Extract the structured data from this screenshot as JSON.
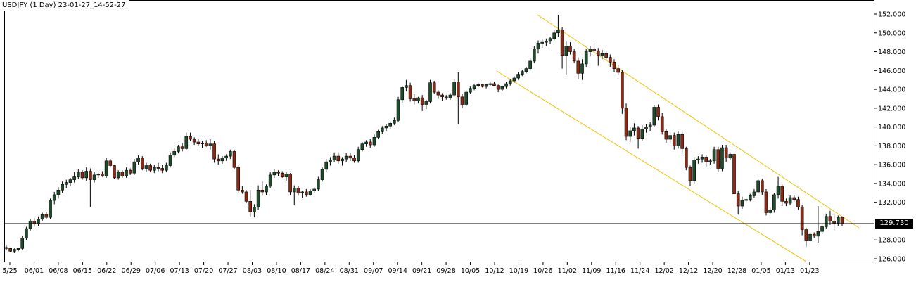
{
  "chart_data": {
    "type": "candlestick",
    "title": "USDJPY (1 Day) 23-01-27_14-52-27",
    "ylim": [
      126,
      152
    ],
    "yticks": [
      "152.000",
      "150.000",
      "148.000",
      "146.000",
      "144.000",
      "142.000",
      "140.000",
      "138.000",
      "136.000",
      "134.000",
      "132.000",
      "130.000",
      "128.000",
      "126.000"
    ],
    "xticks": [
      "5/25",
      "06/01",
      "06/08",
      "06/15",
      "06/22",
      "06/29",
      "07/06",
      "07/13",
      "07/20",
      "07/27",
      "08/03",
      "08/10",
      "08/17",
      "08/24",
      "08/31",
      "09/07",
      "09/14",
      "09/21",
      "09/28",
      "10/05",
      "10/12",
      "10/19",
      "10/26",
      "11/02",
      "11/09",
      "11/16",
      "11/24",
      "12/02",
      "12/12",
      "12/20",
      "12/28",
      "01/05",
      "01/13",
      "01/23"
    ],
    "current_price": "129.730",
    "up_color": "#1f4d2c",
    "down_color": "#8b2a14",
    "channel_color": "#f2c200",
    "candles": [
      [
        127.2,
        127.4,
        126.9,
        127.1
      ],
      [
        127.1,
        127.2,
        126.7,
        126.8
      ],
      [
        126.8,
        127.1,
        126.6,
        127.0
      ],
      [
        127.0,
        127.2,
        126.8,
        127.1
      ],
      [
        127.1,
        128.4,
        126.9,
        128.2
      ],
      [
        128.2,
        129.4,
        128.0,
        129.2
      ],
      [
        129.2,
        130.2,
        129.0,
        130.0
      ],
      [
        130.0,
        130.3,
        129.4,
        129.7
      ],
      [
        129.7,
        130.5,
        129.5,
        130.2
      ],
      [
        130.2,
        130.9,
        130.0,
        130.7
      ],
      [
        130.7,
        131.0,
        130.2,
        130.4
      ],
      [
        130.4,
        132.4,
        130.2,
        132.2
      ],
      [
        132.2,
        133.1,
        131.8,
        132.8
      ],
      [
        132.8,
        133.6,
        132.4,
        133.3
      ],
      [
        133.3,
        134.2,
        133.0,
        133.9
      ],
      [
        133.9,
        134.4,
        133.5,
        134.1
      ],
      [
        134.1,
        134.6,
        133.7,
        134.4
      ],
      [
        134.4,
        135.2,
        134.1,
        134.7
      ],
      [
        134.7,
        135.5,
        134.5,
        135.2
      ],
      [
        135.2,
        135.4,
        134.4,
        134.6
      ],
      [
        134.6,
        135.7,
        134.3,
        135.3
      ],
      [
        135.3,
        135.6,
        131.5,
        134.4
      ],
      [
        134.4,
        135.2,
        134.1,
        134.9
      ],
      [
        134.9,
        135.1,
        134.6,
        135.0
      ],
      [
        135.0,
        135.3,
        134.7,
        134.8
      ],
      [
        134.8,
        136.7,
        134.6,
        136.4
      ],
      [
        136.4,
        136.6,
        135.7,
        135.9
      ],
      [
        135.9,
        136.0,
        134.5,
        134.6
      ],
      [
        134.6,
        135.4,
        134.4,
        135.2
      ],
      [
        135.2,
        135.4,
        134.6,
        134.8
      ],
      [
        134.8,
        135.7,
        134.6,
        135.4
      ],
      [
        135.4,
        135.6,
        134.9,
        135.1
      ],
      [
        135.1,
        136.6,
        134.9,
        136.3
      ],
      [
        136.3,
        137.0,
        136.0,
        136.7
      ],
      [
        136.7,
        136.9,
        135.4,
        135.6
      ],
      [
        135.6,
        136.2,
        135.2,
        135.9
      ],
      [
        135.9,
        136.1,
        135.2,
        135.4
      ],
      [
        135.4,
        136.0,
        135.1,
        135.7
      ],
      [
        135.7,
        136.2,
        135.3,
        135.6
      ],
      [
        135.6,
        136.0,
        135.1,
        135.4
      ],
      [
        135.4,
        136.2,
        135.2,
        135.9
      ],
      [
        135.9,
        137.3,
        135.7,
        137.0
      ],
      [
        137.0,
        137.8,
        136.8,
        137.4
      ],
      [
        137.4,
        138.1,
        137.2,
        137.9
      ],
      [
        137.9,
        138.3,
        137.4,
        137.7
      ],
      [
        137.7,
        139.4,
        137.5,
        139.0
      ],
      [
        139.0,
        139.4,
        138.5,
        138.7
      ],
      [
        138.7,
        138.9,
        138.1,
        138.4
      ],
      [
        138.4,
        138.7,
        138.0,
        138.2
      ],
      [
        138.2,
        138.5,
        137.8,
        138.3
      ],
      [
        138.3,
        138.6,
        137.9,
        138.0
      ],
      [
        138.0,
        138.7,
        137.6,
        138.2
      ],
      [
        138.2,
        138.5,
        136.2,
        136.6
      ],
      [
        136.6,
        137.1,
        136.0,
        136.4
      ],
      [
        136.4,
        136.9,
        136.1,
        136.7
      ],
      [
        136.7,
        137.1,
        136.4,
        136.9
      ],
      [
        136.9,
        137.6,
        136.6,
        137.4
      ],
      [
        137.4,
        137.6,
        135.5,
        135.7
      ],
      [
        135.7,
        136.0,
        133.0,
        133.3
      ],
      [
        133.3,
        133.7,
        132.9,
        133.1
      ],
      [
        133.1,
        133.3,
        131.9,
        132.1
      ],
      [
        132.1,
        133.3,
        130.4,
        131.0
      ],
      [
        131.0,
        131.8,
        130.4,
        131.5
      ],
      [
        131.5,
        133.8,
        131.2,
        133.3
      ],
      [
        133.3,
        134.2,
        132.7,
        133.1
      ],
      [
        133.1,
        133.9,
        132.8,
        133.7
      ],
      [
        133.7,
        135.2,
        133.5,
        134.9
      ],
      [
        134.9,
        135.5,
        134.6,
        135.2
      ],
      [
        135.2,
        135.4,
        134.8,
        135.1
      ],
      [
        135.1,
        135.3,
        134.6,
        134.7
      ],
      [
        134.7,
        135.2,
        134.3,
        135.0
      ],
      [
        135.0,
        135.1,
        132.8,
        133.1
      ],
      [
        133.1,
        133.8,
        131.7,
        133.5
      ],
      [
        133.5,
        133.7,
        132.7,
        133.0
      ],
      [
        133.0,
        133.2,
        132.5,
        133.1
      ],
      [
        133.1,
        133.4,
        132.6,
        132.8
      ],
      [
        132.8,
        133.4,
        132.7,
        133.2
      ],
      [
        133.2,
        133.6,
        133.0,
        133.4
      ],
      [
        133.4,
        134.7,
        133.2,
        134.4
      ],
      [
        134.4,
        135.7,
        134.2,
        135.5
      ],
      [
        135.5,
        136.6,
        135.2,
        136.3
      ],
      [
        136.3,
        136.8,
        135.9,
        136.5
      ],
      [
        136.5,
        137.3,
        136.3,
        136.9
      ],
      [
        136.9,
        137.3,
        136.1,
        136.4
      ],
      [
        136.4,
        136.8,
        135.9,
        136.6
      ],
      [
        136.6,
        137.2,
        136.3,
        136.9
      ],
      [
        136.9,
        137.2,
        136.4,
        136.7
      ],
      [
        136.7,
        137.0,
        136.2,
        136.4
      ],
      [
        136.4,
        137.9,
        136.2,
        137.6
      ],
      [
        137.6,
        138.4,
        137.4,
        138.2
      ],
      [
        138.2,
        138.6,
        137.9,
        138.4
      ],
      [
        138.4,
        138.7,
        137.8,
        138.1
      ],
      [
        138.1,
        139.2,
        137.9,
        138.9
      ],
      [
        138.9,
        139.7,
        138.7,
        139.5
      ],
      [
        139.5,
        140.1,
        139.3,
        139.9
      ],
      [
        139.9,
        140.3,
        139.6,
        140.1
      ],
      [
        140.1,
        140.6,
        139.8,
        140.4
      ],
      [
        140.4,
        141.0,
        140.2,
        140.7
      ],
      [
        140.7,
        143.2,
        140.5,
        142.9
      ],
      [
        142.9,
        144.4,
        142.6,
        144.2
      ],
      [
        144.2,
        145.0,
        143.8,
        144.4
      ],
      [
        144.4,
        144.7,
        142.7,
        143.0
      ],
      [
        143.0,
        143.5,
        142.4,
        142.8
      ],
      [
        142.8,
        143.2,
        142.5,
        143.1
      ],
      [
        143.1,
        143.4,
        141.7,
        142.4
      ],
      [
        142.4,
        142.9,
        141.9,
        142.7
      ],
      [
        142.7,
        145.0,
        142.5,
        144.7
      ],
      [
        144.7,
        144.9,
        143.5,
        143.7
      ],
      [
        143.7,
        143.9,
        143.0,
        143.4
      ],
      [
        143.4,
        143.6,
        142.8,
        143.2
      ],
      [
        143.2,
        143.4,
        142.9,
        143.1
      ],
      [
        143.1,
        143.6,
        142.9,
        143.4
      ],
      [
        143.4,
        145.1,
        143.2,
        144.8
      ],
      [
        144.8,
        145.8,
        140.3,
        143.2
      ],
      [
        143.2,
        143.5,
        142.0,
        142.4
      ],
      [
        142.4,
        143.9,
        142.2,
        143.7
      ],
      [
        143.7,
        144.3,
        143.5,
        144.1
      ],
      [
        144.1,
        144.6,
        143.9,
        144.4
      ],
      [
        144.4,
        144.7,
        144.2,
        144.5
      ],
      [
        144.5,
        144.6,
        144.2,
        144.3
      ],
      [
        144.3,
        144.6,
        144.1,
        144.5
      ],
      [
        144.5,
        144.8,
        144.3,
        144.6
      ],
      [
        144.6,
        144.8,
        144.3,
        144.4
      ],
      [
        144.4,
        144.5,
        143.7,
        144.0
      ],
      [
        144.0,
        144.4,
        143.8,
        144.3
      ],
      [
        144.3,
        144.8,
        144.1,
        144.6
      ],
      [
        144.6,
        145.1,
        144.4,
        144.9
      ],
      [
        144.9,
        145.4,
        144.7,
        145.2
      ],
      [
        145.2,
        145.8,
        145.0,
        145.6
      ],
      [
        145.6,
        146.1,
        145.4,
        145.9
      ],
      [
        145.9,
        146.4,
        145.7,
        146.2
      ],
      [
        146.2,
        147.3,
        146.0,
        147.0
      ],
      [
        147.0,
        148.6,
        146.8,
        148.3
      ],
      [
        148.3,
        149.2,
        147.8,
        148.9
      ],
      [
        148.9,
        149.3,
        148.4,
        149.0
      ],
      [
        149.0,
        149.4,
        148.6,
        149.1
      ],
      [
        149.1,
        149.6,
        148.8,
        149.4
      ],
      [
        149.4,
        150.3,
        149.2,
        150.0
      ],
      [
        150.0,
        151.9,
        149.6,
        150.3
      ],
      [
        150.3,
        150.6,
        146.2,
        147.6
      ],
      [
        147.6,
        149.1,
        145.5,
        148.6
      ],
      [
        148.6,
        149.0,
        147.7,
        148.0
      ],
      [
        148.0,
        148.3,
        146.8,
        147.0
      ],
      [
        147.0,
        147.4,
        145.1,
        145.7
      ],
      [
        145.7,
        147.2,
        145.0,
        146.7
      ],
      [
        146.7,
        148.3,
        146.4,
        148.0
      ],
      [
        148.0,
        148.6,
        147.5,
        148.3
      ],
      [
        148.3,
        148.9,
        147.8,
        148.1
      ],
      [
        148.1,
        148.4,
        146.5,
        147.6
      ],
      [
        147.6,
        148.2,
        147.2,
        147.8
      ],
      [
        147.8,
        148.0,
        147.1,
        147.4
      ],
      [
        147.4,
        147.7,
        146.4,
        146.9
      ],
      [
        146.9,
        147.2,
        145.8,
        146.2
      ],
      [
        146.2,
        146.6,
        145.5,
        145.8
      ],
      [
        145.8,
        146.1,
        141.4,
        142.0
      ],
      [
        142.0,
        142.5,
        138.6,
        139.0
      ],
      [
        139.0,
        140.0,
        138.4,
        139.6
      ],
      [
        139.6,
        140.4,
        139.1,
        139.9
      ],
      [
        139.9,
        140.1,
        137.7,
        138.8
      ],
      [
        138.8,
        140.2,
        138.5,
        139.8
      ],
      [
        139.8,
        140.3,
        139.4,
        140.0
      ],
      [
        140.0,
        140.5,
        139.6,
        140.2
      ],
      [
        140.2,
        142.3,
        140.0,
        142.1
      ],
      [
        142.1,
        142.4,
        140.7,
        141.1
      ],
      [
        141.1,
        141.5,
        139.2,
        139.5
      ],
      [
        139.5,
        139.8,
        138.3,
        138.7
      ],
      [
        138.7,
        139.5,
        138.2,
        139.1
      ],
      [
        139.1,
        139.4,
        137.6,
        138.0
      ],
      [
        138.0,
        139.5,
        137.7,
        139.2
      ],
      [
        139.2,
        139.5,
        137.3,
        137.7
      ],
      [
        137.7,
        137.9,
        135.4,
        135.7
      ],
      [
        135.7,
        135.9,
        133.7,
        134.3
      ],
      [
        134.3,
        136.8,
        134.0,
        136.5
      ],
      [
        136.5,
        136.9,
        136.1,
        136.6
      ],
      [
        136.6,
        137.1,
        136.2,
        136.8
      ],
      [
        136.8,
        137.0,
        135.8,
        136.3
      ],
      [
        136.3,
        136.6,
        136.0,
        136.4
      ],
      [
        136.4,
        137.9,
        136.1,
        137.6
      ],
      [
        137.6,
        137.9,
        135.2,
        135.6
      ],
      [
        135.6,
        138.1,
        135.3,
        137.8
      ],
      [
        137.8,
        138.1,
        136.3,
        136.7
      ],
      [
        136.7,
        137.3,
        136.5,
        137.1
      ],
      [
        137.1,
        137.4,
        132.6,
        132.9
      ],
      [
        132.9,
        133.2,
        130.7,
        131.6
      ],
      [
        131.6,
        132.6,
        131.3,
        132.2
      ],
      [
        132.2,
        132.5,
        132.0,
        132.3
      ],
      [
        132.3,
        132.9,
        132.1,
        132.7
      ],
      [
        132.7,
        133.4,
        132.5,
        133.1
      ],
      [
        133.1,
        134.5,
        132.9,
        134.3
      ],
      [
        134.3,
        134.5,
        132.8,
        133.1
      ],
      [
        133.1,
        133.4,
        130.6,
        130.9
      ],
      [
        130.9,
        131.4,
        130.7,
        131.2
      ],
      [
        131.2,
        133.0,
        130.9,
        132.8
      ],
      [
        132.8,
        134.7,
        132.4,
        133.7
      ],
      [
        133.7,
        133.9,
        131.6,
        132.1
      ],
      [
        132.1,
        132.4,
        131.6,
        131.9
      ],
      [
        131.9,
        132.8,
        131.7,
        132.5
      ],
      [
        132.5,
        132.8,
        132.1,
        132.3
      ],
      [
        132.3,
        132.6,
        131.2,
        131.5
      ],
      [
        131.5,
        131.7,
        128.5,
        129.1
      ],
      [
        129.1,
        129.3,
        127.3,
        127.9
      ],
      [
        127.9,
        128.8,
        127.7,
        128.6
      ],
      [
        128.6,
        128.8,
        128.2,
        128.4
      ],
      [
        128.4,
        131.6,
        127.7,
        128.9
      ],
      [
        128.9,
        129.7,
        128.6,
        129.4
      ],
      [
        129.4,
        130.8,
        129.2,
        130.5
      ],
      [
        130.5,
        131.1,
        129.6,
        130.0
      ],
      [
        130.0,
        130.8,
        129.0,
        129.8
      ],
      [
        129.8,
        130.6,
        129.5,
        130.4
      ],
      [
        130.4,
        130.5,
        129.5,
        129.73
      ]
    ]
  }
}
